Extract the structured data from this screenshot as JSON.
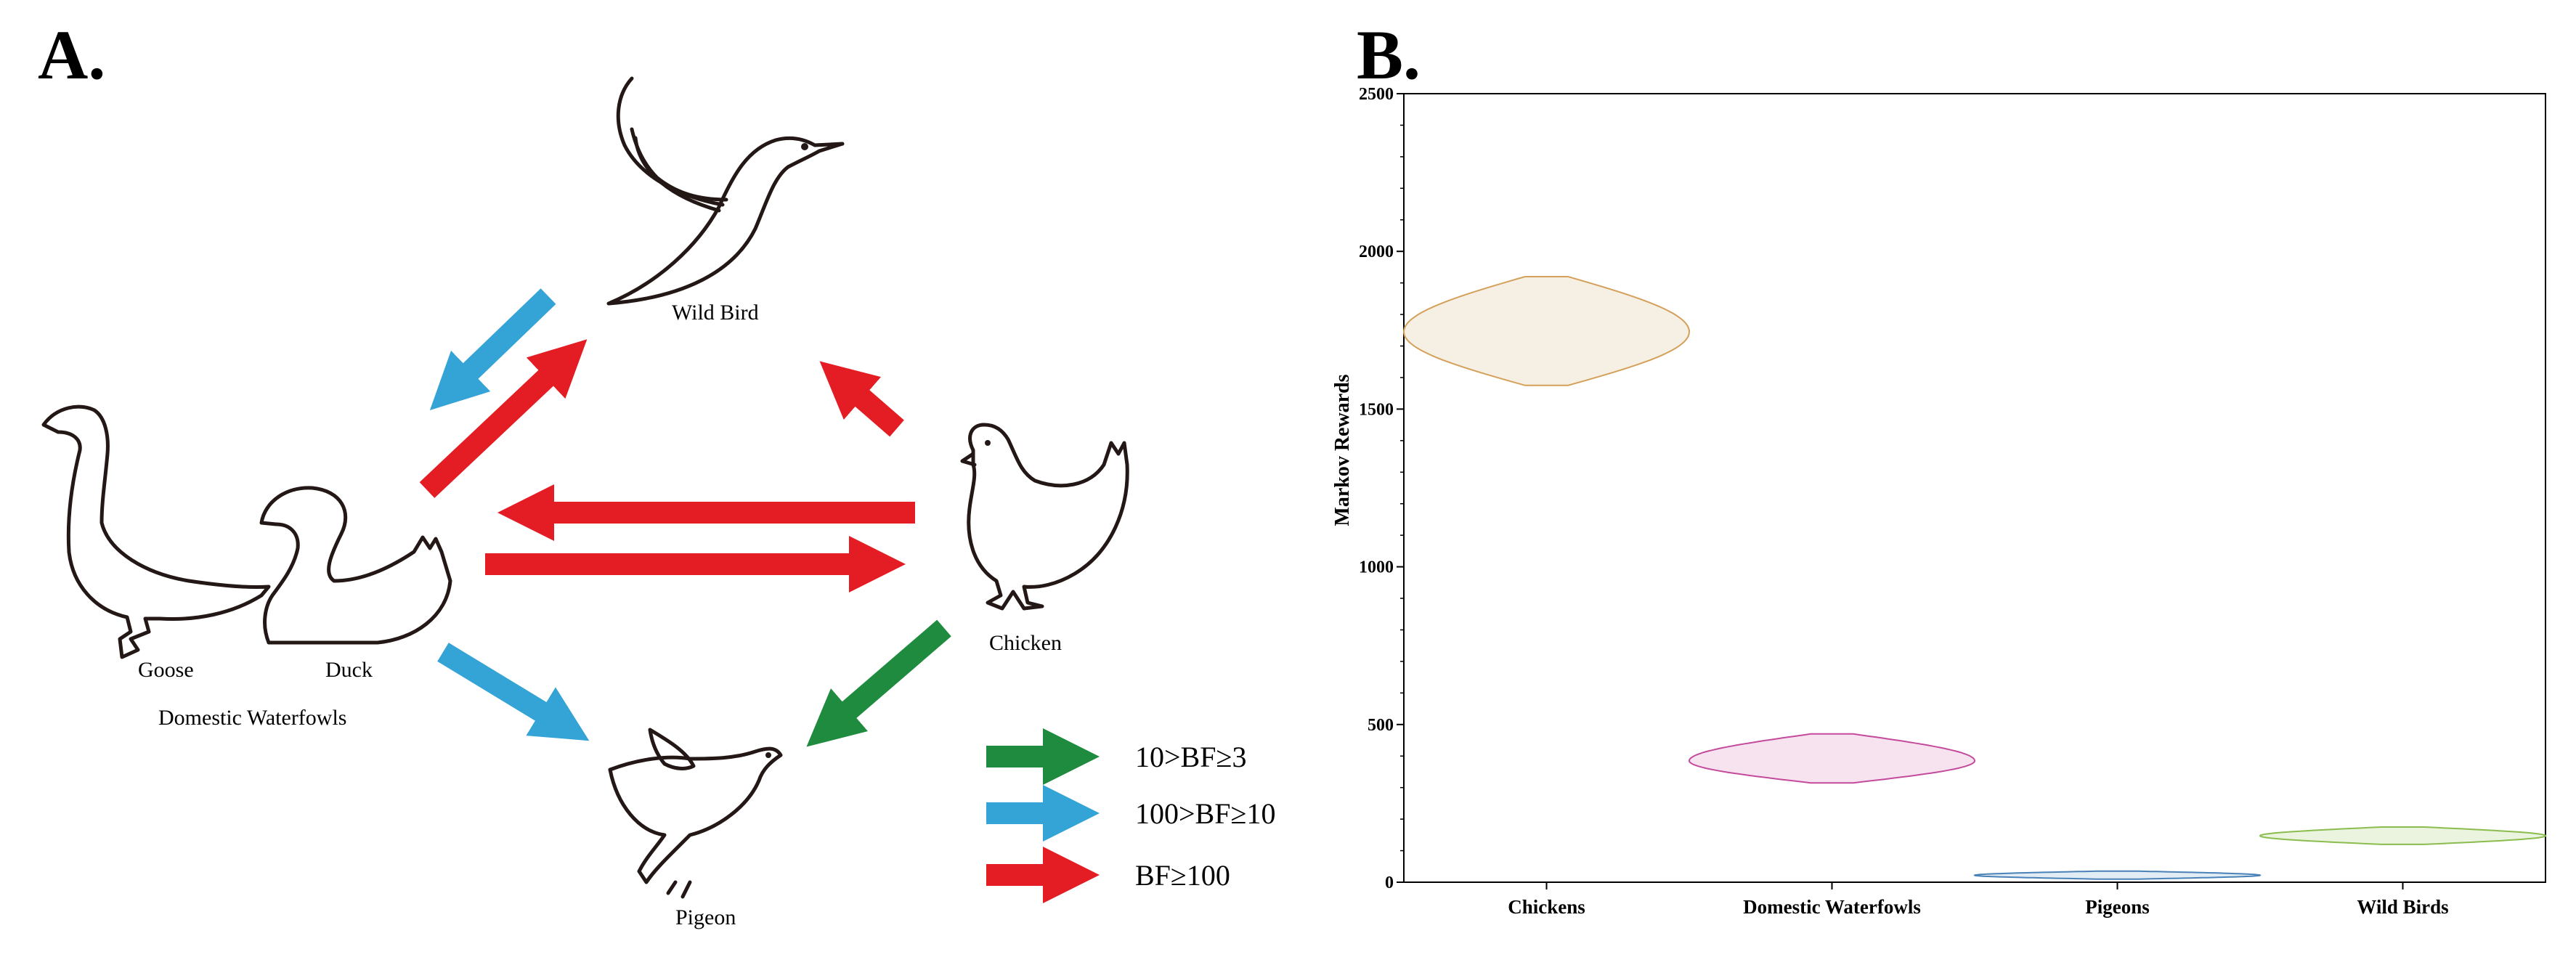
{
  "panel_a": {
    "label": "A.",
    "nodes": {
      "wild_bird": "Wild Bird",
      "goose": "Goose",
      "duck": "Duck",
      "domestic_waterfowls": "Domestic Waterfowls",
      "chicken": "Chicken",
      "pigeon": "Pigeon"
    },
    "arrows": [
      {
        "from": "Wild Bird",
        "to": "Domestic Waterfowls",
        "support": "100>BF≥10"
      },
      {
        "from": "Domestic Waterfowls",
        "to": "Wild Bird",
        "support": "BF≥100"
      },
      {
        "from": "Chicken",
        "to": "Wild Bird",
        "support": "BF≥100"
      },
      {
        "from": "Chicken",
        "to": "Domestic Waterfowls",
        "support": "BF≥100"
      },
      {
        "from": "Domestic Waterfowls",
        "to": "Chicken",
        "support": "BF≥100"
      },
      {
        "from": "Domestic Waterfowls",
        "to": "Pigeon",
        "support": "100>BF≥10"
      },
      {
        "from": "Chicken",
        "to": "Pigeon",
        "support": "10>BF≥3"
      }
    ],
    "legend": [
      {
        "label": "10>BF≥3",
        "color": "#1e8b3e"
      },
      {
        "label": "100>BF≥10",
        "color": "#34a3d6"
      },
      {
        "label": "BF≥100",
        "color": "#e31d23"
      }
    ]
  },
  "panel_b": {
    "label": "B."
  },
  "chart_data": {
    "type": "violin",
    "title": "",
    "xlabel": "",
    "ylabel": "Markov Rewards",
    "ylim": [
      0,
      2500
    ],
    "yticks": [
      0,
      500,
      1000,
      1500,
      2000,
      2500
    ],
    "categories": [
      "Chickens",
      "Domestic Waterfowls",
      "Pigeons",
      "Wild Birds"
    ],
    "series": [
      {
        "name": "Chickens",
        "min": 1575,
        "max": 1920,
        "median": 1745,
        "max_density_at": 1745,
        "fill": "#f5f0e3",
        "stroke": "#d4a05a"
      },
      {
        "name": "Domestic Waterfowls",
        "min": 315,
        "max": 470,
        "median": 385,
        "max_density_at": 385,
        "fill": "#f7e3ef",
        "stroke": "#c44b9c"
      },
      {
        "name": "Pigeons",
        "min": 10,
        "max": 35,
        "median": 22,
        "max_density_at": 22,
        "fill": "#e2ecf4",
        "stroke": "#4a82b8"
      },
      {
        "name": "Wild Birds",
        "min": 120,
        "max": 175,
        "median": 147,
        "max_density_at": 147,
        "fill": "#ebf4df",
        "stroke": "#8bbd4e"
      }
    ]
  }
}
